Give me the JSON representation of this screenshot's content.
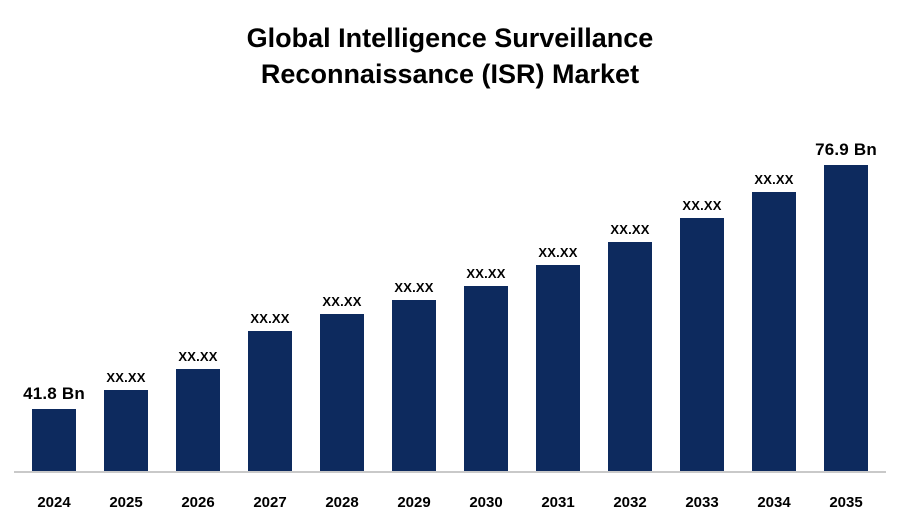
{
  "title": "Global Intelligence Surveillance Reconnaissance (ISR) Market",
  "chart_data": {
    "type": "bar",
    "title": "Global Intelligence Surveillance Reconnaissance (ISR) Market",
    "categories": [
      "2024",
      "2025",
      "2026",
      "2027",
      "2028",
      "2029",
      "2030",
      "2031",
      "2032",
      "2033",
      "2034",
      "2035"
    ],
    "values": [
      41.8,
      44.5,
      47.5,
      53.0,
      55.5,
      57.5,
      59.5,
      62.5,
      65.8,
      69.3,
      73.0,
      76.9
    ],
    "bar_labels": [
      "41.8 Bn",
      "XX.XX",
      "XX.XX",
      "XX.XX",
      "XX.XX",
      "XX.XX",
      "XX.XX",
      "XX.XX",
      "XX.XX",
      "XX.XX",
      "XX.XX",
      "76.9 Bn"
    ],
    "first_value_label": "41.8 Bn",
    "last_value_label": "76.9 Bn",
    "bar_color": "#0d2a5e",
    "axis_line_color": "#c9c9c9",
    "grid": false,
    "legend": false,
    "y_axis_labels_visible": false
  }
}
